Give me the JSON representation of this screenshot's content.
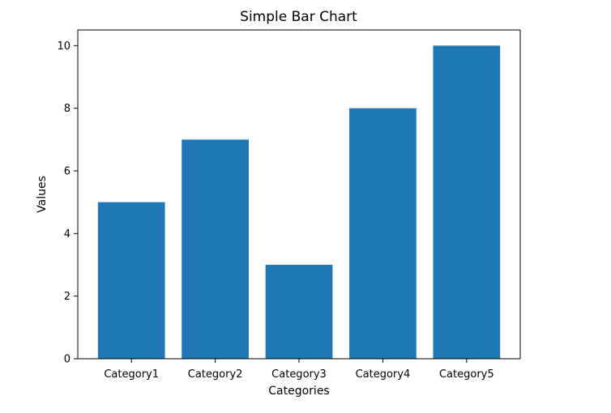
{
  "chart_data": {
    "type": "bar",
    "title": "Simple Bar Chart",
    "xlabel": "Categories",
    "ylabel": "Values",
    "categories": [
      "Category1",
      "Category2",
      "Category3",
      "Category4",
      "Category5"
    ],
    "values": [
      5,
      7,
      3,
      8,
      10
    ],
    "ylim": [
      0,
      10.5
    ],
    "yticks": [
      "0",
      "2",
      "4",
      "6",
      "8",
      "10"
    ],
    "bar_color": "#1f77b4",
    "grid": false,
    "legend": "none"
  }
}
